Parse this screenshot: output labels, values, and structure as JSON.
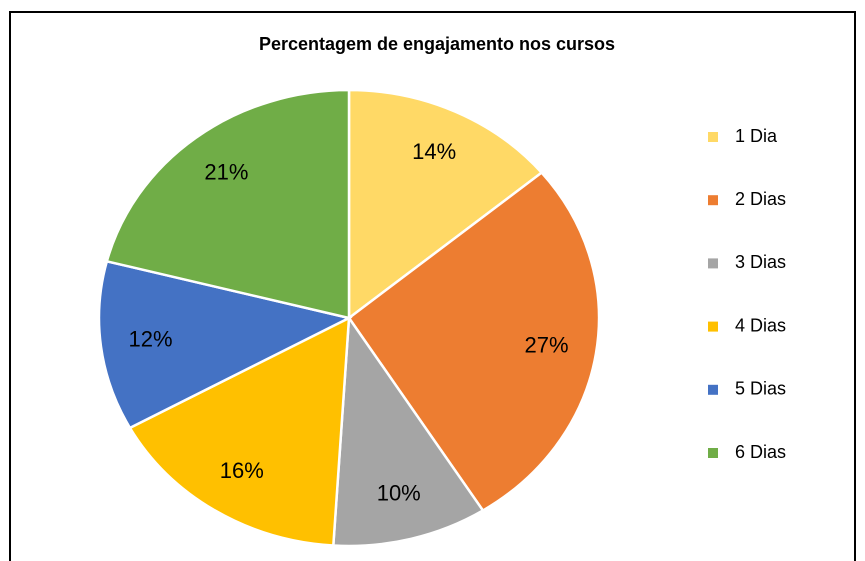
{
  "chart_data": {
    "type": "pie",
    "title": "Percentagem de engajamento nos cursos",
    "categories": [
      "1 Dia",
      "2 Dias",
      "3 Dias",
      "4 Dias",
      "5 Dias",
      "6 Dias"
    ],
    "values": [
      14,
      27,
      10,
      16,
      12,
      21
    ],
    "value_labels": [
      "14%",
      "27%",
      "10%",
      "16%",
      "12%",
      "21%"
    ],
    "colors": [
      "#FFD966",
      "#ED7D31",
      "#A5A5A5",
      "#FFC000",
      "#4472C4",
      "#70AD47"
    ],
    "legend": "right"
  }
}
